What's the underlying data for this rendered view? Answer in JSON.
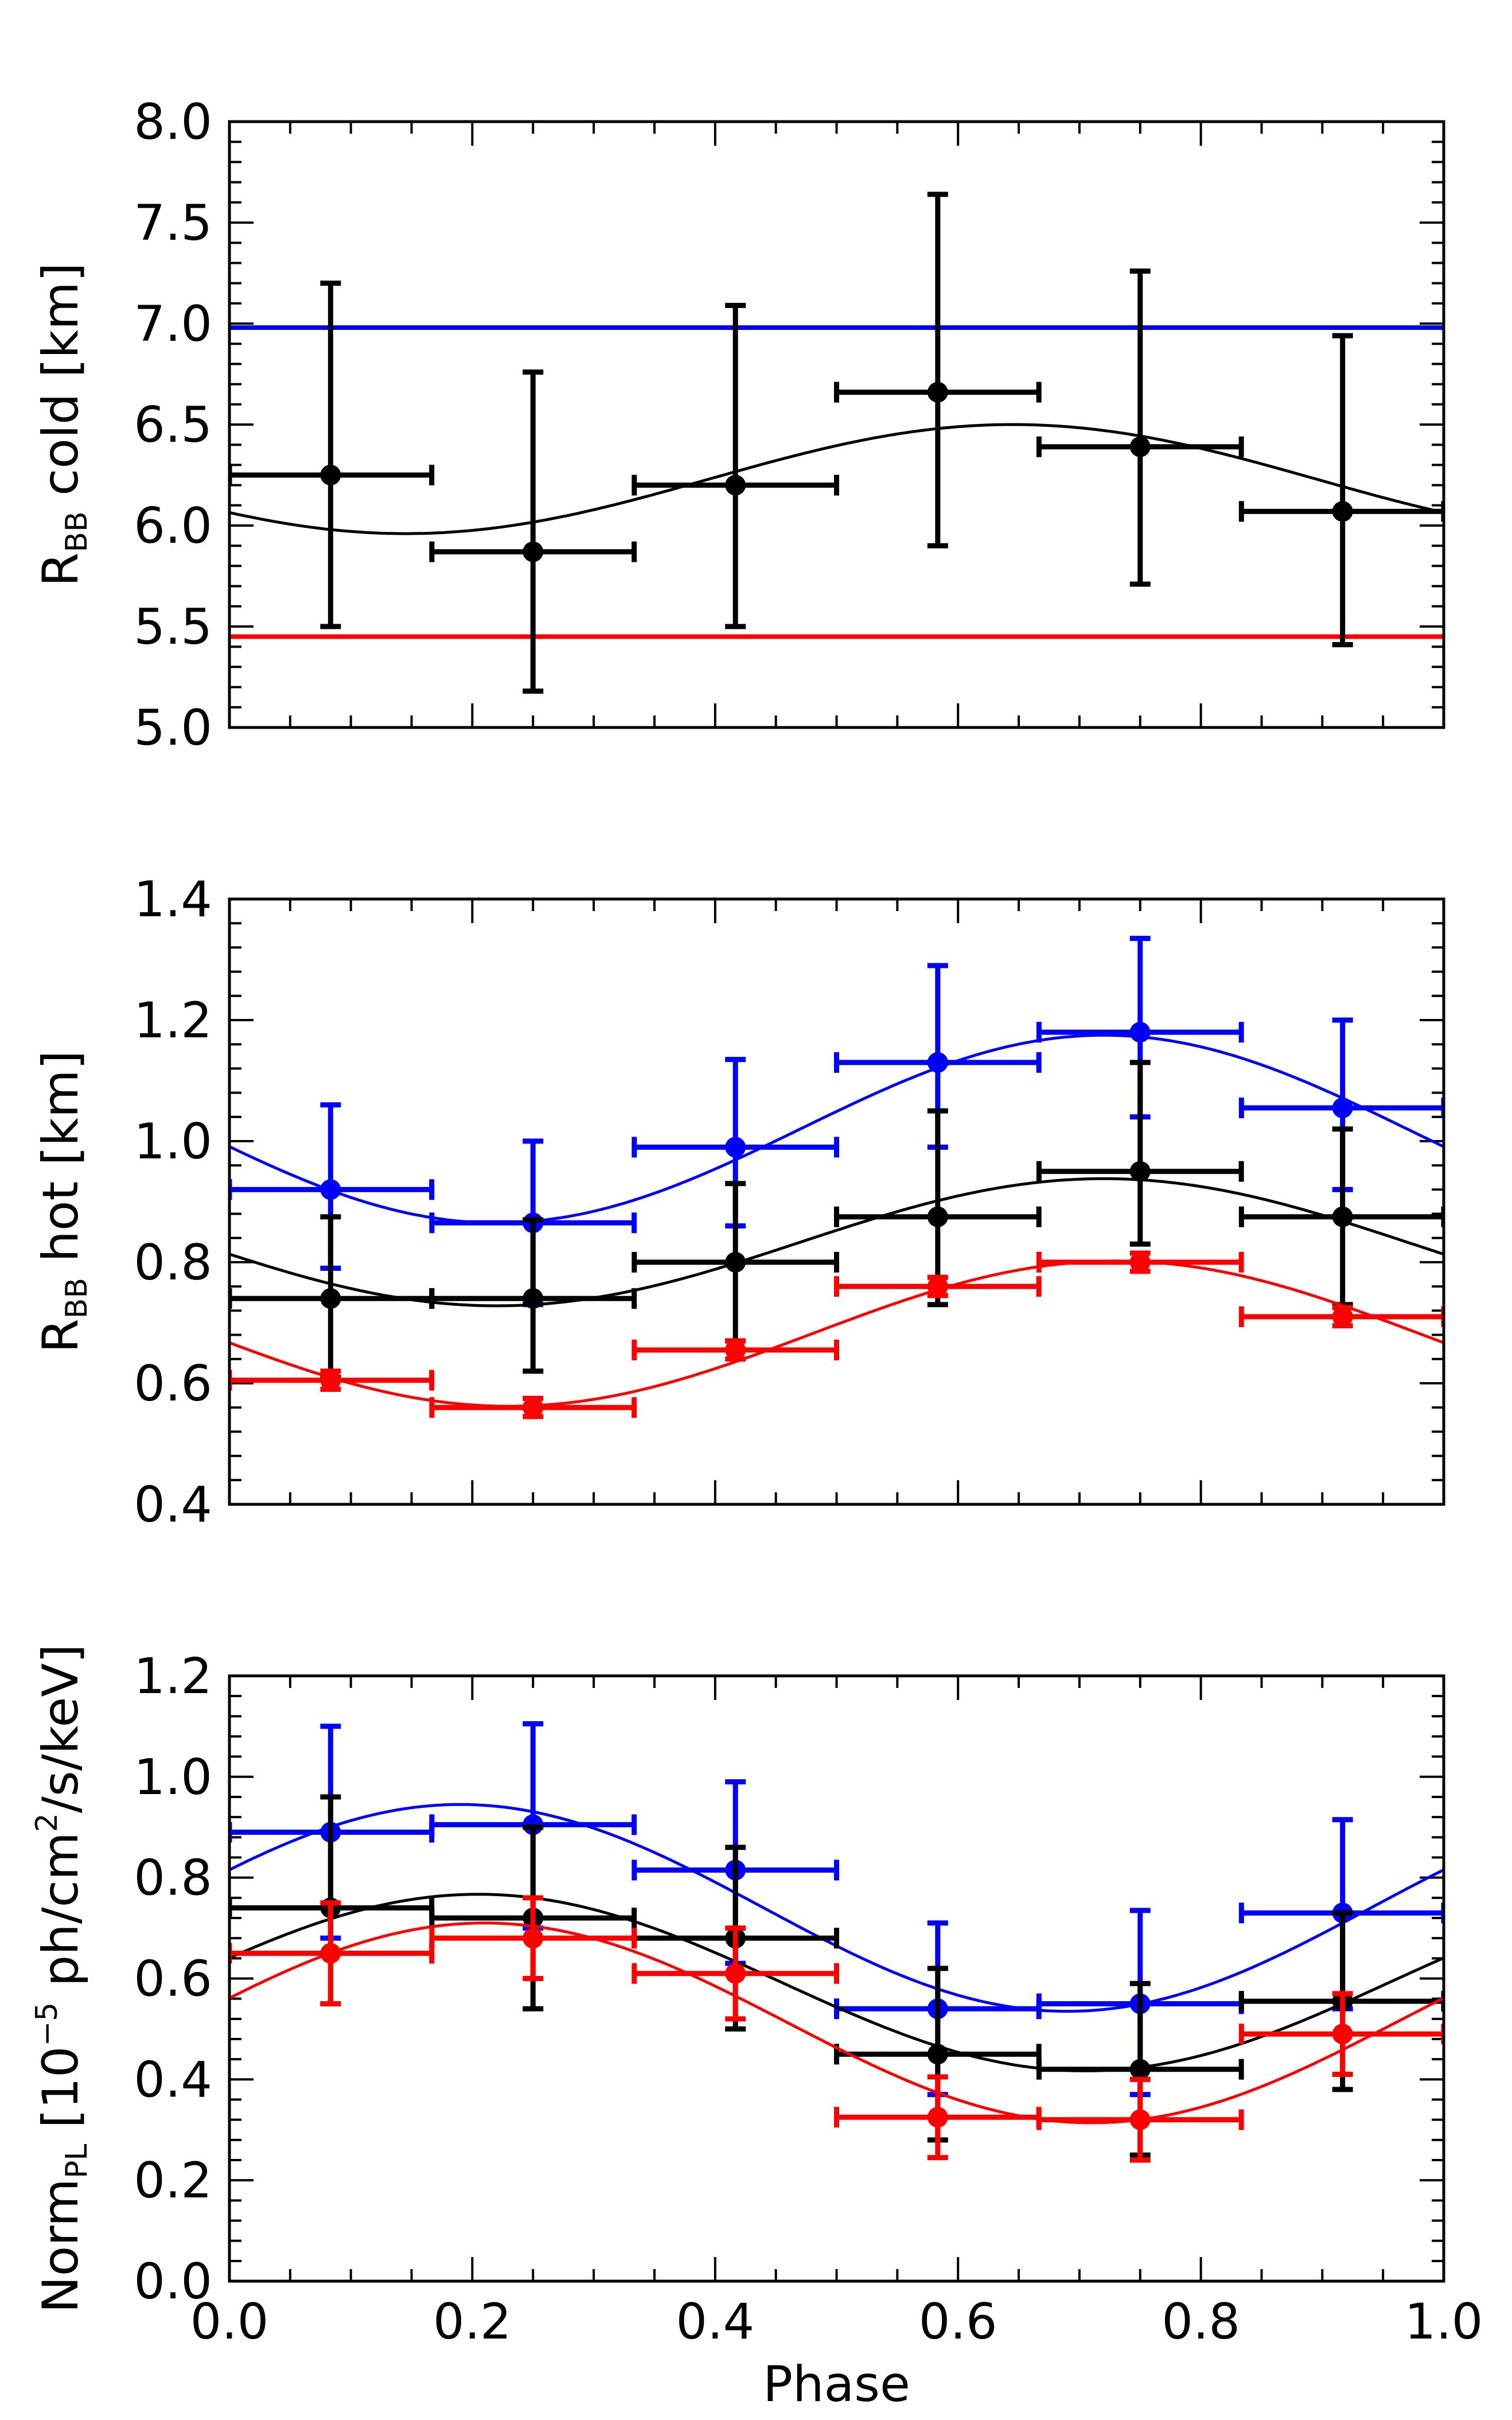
{
  "chart_data": [
    {
      "type": "scatter",
      "panel": "top",
      "ylabel": {
        "main": "R",
        "sub": "BB",
        "rest": " cold  [km]"
      },
      "xlim": [
        0.0,
        1.0
      ],
      "ylim": [
        5.0,
        8.0
      ],
      "yticks": [
        "5.0",
        "5.5",
        "6.0",
        "6.5",
        "7.0",
        "7.5",
        "8.0"
      ],
      "ytick_values": [
        5.0,
        5.5,
        6.0,
        6.5,
        7.0,
        7.5,
        8.0
      ],
      "hlines": [
        {
          "name": "blue",
          "y": 6.98,
          "color": "#0000ff"
        },
        {
          "name": "red",
          "y": 5.45,
          "color": "#ff0000"
        }
      ],
      "series": [
        {
          "name": "black",
          "color": "#000000",
          "points": [
            {
              "x": 0.0833,
              "y": 6.25,
              "xerr": 0.0833,
              "ylo": 5.5,
              "yhi": 7.2
            },
            {
              "x": 0.25,
              "y": 5.87,
              "xerr": 0.0833,
              "ylo": 5.18,
              "yhi": 6.76
            },
            {
              "x": 0.4167,
              "y": 6.2,
              "xerr": 0.0833,
              "ylo": 5.5,
              "yhi": 7.09
            },
            {
              "x": 0.5833,
              "y": 6.66,
              "xerr": 0.0833,
              "ylo": 5.9,
              "yhi": 7.64
            },
            {
              "x": 0.75,
              "y": 6.39,
              "xerr": 0.0833,
              "ylo": 5.71,
              "yhi": 7.26
            },
            {
              "x": 0.9167,
              "y": 6.07,
              "xerr": 0.0833,
              "ylo": 5.41,
              "yhi": 6.94
            }
          ],
          "fit": {
            "mean": 6.23,
            "amp": 0.27,
            "phase0": 0.645
          }
        }
      ]
    },
    {
      "type": "scatter",
      "panel": "middle",
      "ylabel": {
        "main": "R",
        "sub": "BB",
        "rest": " hot  [km]"
      },
      "xlim": [
        0.0,
        1.0
      ],
      "ylim": [
        0.4,
        1.4
      ],
      "yticks": [
        "0.4",
        "0.6",
        "0.8",
        "1.0",
        "1.2",
        "1.4"
      ],
      "ytick_values": [
        0.4,
        0.6,
        0.8,
        1.0,
        1.2,
        1.4
      ],
      "hlines": [],
      "series": [
        {
          "name": "blue",
          "color": "#0000ff",
          "points": [
            {
              "x": 0.0833,
              "y": 0.92,
              "xerr": 0.0833,
              "ylo": 0.79,
              "yhi": 1.06
            },
            {
              "x": 0.25,
              "y": 0.865,
              "xerr": 0.0833,
              "ylo": 0.73,
              "yhi": 1.0
            },
            {
              "x": 0.4167,
              "y": 0.99,
              "xerr": 0.0833,
              "ylo": 0.86,
              "yhi": 1.135
            },
            {
              "x": 0.5833,
              "y": 1.13,
              "xerr": 0.0833,
              "ylo": 0.99,
              "yhi": 1.29
            },
            {
              "x": 0.75,
              "y": 1.18,
              "xerr": 0.0833,
              "ylo": 1.04,
              "yhi": 1.335
            },
            {
              "x": 0.9167,
              "y": 1.055,
              "xerr": 0.0833,
              "ylo": 0.92,
              "yhi": 1.2
            }
          ],
          "fit": {
            "mean": 1.02,
            "amp": 0.155,
            "phase0": 0.72
          }
        },
        {
          "name": "black",
          "color": "#000000",
          "points": [
            {
              "x": 0.0833,
              "y": 0.74,
              "xerr": 0.0833,
              "ylo": 0.61,
              "yhi": 0.875
            },
            {
              "x": 0.25,
              "y": 0.74,
              "xerr": 0.0833,
              "ylo": 0.62,
              "yhi": 0.87
            },
            {
              "x": 0.4167,
              "y": 0.8,
              "xerr": 0.0833,
              "ylo": 0.67,
              "yhi": 0.93
            },
            {
              "x": 0.5833,
              "y": 0.875,
              "xerr": 0.0833,
              "ylo": 0.73,
              "yhi": 1.05
            },
            {
              "x": 0.75,
              "y": 0.95,
              "xerr": 0.0833,
              "ylo": 0.83,
              "yhi": 1.13
            },
            {
              "x": 0.9167,
              "y": 0.875,
              "xerr": 0.0833,
              "ylo": 0.73,
              "yhi": 1.02
            }
          ],
          "fit": {
            "mean": 0.833,
            "amp": 0.105,
            "phase0": 0.72
          }
        },
        {
          "name": "red",
          "color": "#ff0000",
          "points": [
            {
              "x": 0.0833,
              "y": 0.605,
              "xerr": 0.0833,
              "ylo": 0.59,
              "yhi": 0.62
            },
            {
              "x": 0.25,
              "y": 0.56,
              "xerr": 0.0833,
              "ylo": 0.545,
              "yhi": 0.575
            },
            {
              "x": 0.4167,
              "y": 0.655,
              "xerr": 0.0833,
              "ylo": 0.64,
              "yhi": 0.67
            },
            {
              "x": 0.5833,
              "y": 0.76,
              "xerr": 0.0833,
              "ylo": 0.745,
              "yhi": 0.775
            },
            {
              "x": 0.75,
              "y": 0.8,
              "xerr": 0.0833,
              "ylo": 0.785,
              "yhi": 0.815
            },
            {
              "x": 0.9167,
              "y": 0.71,
              "xerr": 0.0833,
              "ylo": 0.695,
              "yhi": 0.725
            }
          ],
          "fit": {
            "mean": 0.682,
            "amp": 0.12,
            "phase0": 0.73
          }
        }
      ]
    },
    {
      "type": "scatter",
      "panel": "bottom",
      "ylabel": {
        "main": "Norm",
        "sub": "PL",
        "rest": "  [10",
        "sup1": "−5",
        "rest2": " ph/cm",
        "sup2": "2",
        "rest3": "/s/keV]"
      },
      "xlabel": "Phase",
      "xlim": [
        0.0,
        1.0
      ],
      "ylim": [
        0.0,
        1.2
      ],
      "xticks": [
        "0.0",
        "0.2",
        "0.4",
        "0.6",
        "0.8",
        "1.0"
      ],
      "xtick_values": [
        0.0,
        0.2,
        0.4,
        0.6,
        0.8,
        1.0
      ],
      "yticks": [
        "0.0",
        "0.2",
        "0.4",
        "0.6",
        "0.8",
        "1.0",
        "1.2"
      ],
      "ytick_values": [
        0.0,
        0.2,
        0.4,
        0.6,
        0.8,
        1.0,
        1.2
      ],
      "hlines": [],
      "series": [
        {
          "name": "blue",
          "color": "#0000ff",
          "points": [
            {
              "x": 0.0833,
              "y": 0.89,
              "xerr": 0.0833,
              "ylo": 0.68,
              "yhi": 1.1
            },
            {
              "x": 0.25,
              "y": 0.905,
              "xerr": 0.0833,
              "ylo": 0.7,
              "yhi": 1.105
            },
            {
              "x": 0.4167,
              "y": 0.815,
              "xerr": 0.0833,
              "ylo": 0.63,
              "yhi": 0.99
            },
            {
              "x": 0.5833,
              "y": 0.54,
              "xerr": 0.0833,
              "ylo": 0.37,
              "yhi": 0.71
            },
            {
              "x": 0.75,
              "y": 0.55,
              "xerr": 0.0833,
              "ylo": 0.37,
              "yhi": 0.735
            },
            {
              "x": 0.9167,
              "y": 0.73,
              "xerr": 0.0833,
              "ylo": 0.54,
              "yhi": 0.915
            }
          ],
          "fit": {
            "mean": 0.74,
            "amp": 0.205,
            "phase0": 0.19
          }
        },
        {
          "name": "black",
          "color": "#000000",
          "points": [
            {
              "x": 0.0833,
              "y": 0.74,
              "xerr": 0.0833,
              "ylo": 0.55,
              "yhi": 0.96
            },
            {
              "x": 0.25,
              "y": 0.72,
              "xerr": 0.0833,
              "ylo": 0.54,
              "yhi": 0.9
            },
            {
              "x": 0.4167,
              "y": 0.68,
              "xerr": 0.0833,
              "ylo": 0.5,
              "yhi": 0.86
            },
            {
              "x": 0.5833,
              "y": 0.45,
              "xerr": 0.0833,
              "ylo": 0.28,
              "yhi": 0.62
            },
            {
              "x": 0.75,
              "y": 0.42,
              "xerr": 0.0833,
              "ylo": 0.25,
              "yhi": 0.59
            },
            {
              "x": 0.9167,
              "y": 0.555,
              "xerr": 0.0833,
              "ylo": 0.38,
              "yhi": 0.73
            }
          ],
          "fit": {
            "mean": 0.592,
            "amp": 0.175,
            "phase0": 0.205
          }
        },
        {
          "name": "red",
          "color": "#ff0000",
          "points": [
            {
              "x": 0.0833,
              "y": 0.65,
              "xerr": 0.0833,
              "ylo": 0.55,
              "yhi": 0.75
            },
            {
              "x": 0.25,
              "y": 0.68,
              "xerr": 0.0833,
              "ylo": 0.6,
              "yhi": 0.76
            },
            {
              "x": 0.4167,
              "y": 0.61,
              "xerr": 0.0833,
              "ylo": 0.52,
              "yhi": 0.7
            },
            {
              "x": 0.5833,
              "y": 0.325,
              "xerr": 0.0833,
              "ylo": 0.245,
              "yhi": 0.405
            },
            {
              "x": 0.75,
              "y": 0.32,
              "xerr": 0.0833,
              "ylo": 0.24,
              "yhi": 0.4
            },
            {
              "x": 0.9167,
              "y": 0.49,
              "xerr": 0.0833,
              "ylo": 0.41,
              "yhi": 0.57
            }
          ],
          "fit": {
            "mean": 0.512,
            "amp": 0.198,
            "phase0": 0.21
          }
        }
      ]
    }
  ]
}
